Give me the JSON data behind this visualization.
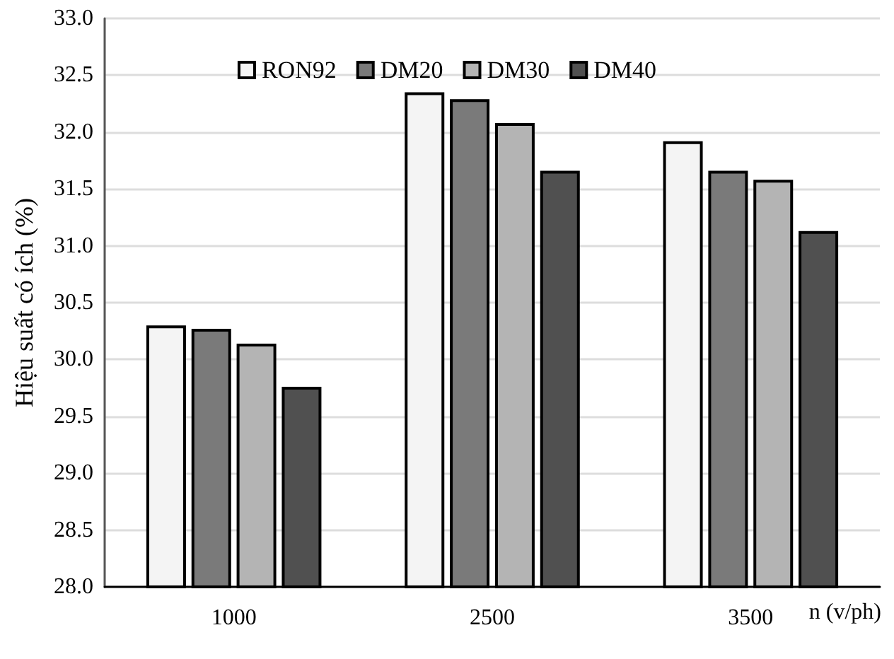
{
  "chart_data": {
    "type": "bar",
    "xlabel": "n (v/ph)",
    "ylabel": "Hiệu suất có ích (%)",
    "categories": [
      "1000",
      "2500",
      "3500"
    ],
    "series": [
      {
        "name": "RON92",
        "color": "#f4f4f4",
        "values": [
          30.3,
          32.35,
          31.92
        ]
      },
      {
        "name": "DM20",
        "color": "#7a7a7a",
        "values": [
          30.27,
          32.29,
          31.66
        ]
      },
      {
        "name": "DM30",
        "color": "#b4b4b4",
        "values": [
          30.14,
          32.08,
          31.58
        ]
      },
      {
        "name": "DM40",
        "color": "#505050",
        "values": [
          29.76,
          31.66,
          31.13
        ]
      }
    ],
    "ylim": [
      28,
      33
    ],
    "yticks": [
      {
        "value": 28,
        "label": "28.0"
      },
      {
        "value": 28.5,
        "label": "28.5"
      },
      {
        "value": 29,
        "label": "29.0"
      },
      {
        "value": 29.5,
        "label": "29.5"
      },
      {
        "value": 30,
        "label": "30.0"
      },
      {
        "value": 30.5,
        "label": "30.5"
      },
      {
        "value": 31,
        "label": "31.0"
      },
      {
        "value": 31.5,
        "label": "31.5"
      },
      {
        "value": 32,
        "label": "32.0"
      },
      {
        "value": 32.5,
        "label": "32.5"
      },
      {
        "value": 33,
        "label": "33.0"
      }
    ],
    "grid": "y",
    "legend": "top"
  }
}
